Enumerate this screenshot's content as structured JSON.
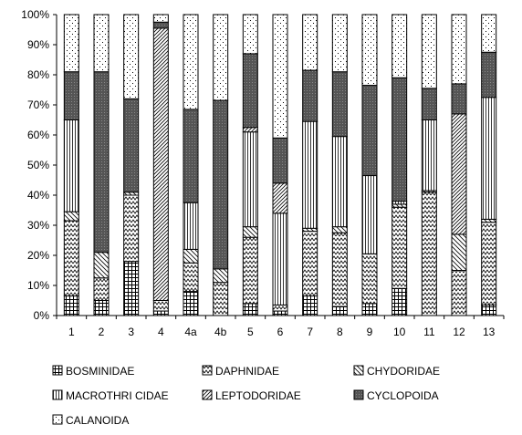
{
  "chart_data": {
    "type": "bar",
    "stacked": true,
    "percent": true,
    "categories": [
      "1",
      "2",
      "3",
      "4",
      "4a",
      "4b",
      "5",
      "6",
      "7",
      "8",
      "9",
      "10",
      "11",
      "12",
      "13"
    ],
    "yticks": [
      "0%",
      "10%",
      "20%",
      "30%",
      "40%",
      "50%",
      "60%",
      "70%",
      "80%",
      "90%",
      "100%"
    ],
    "ylim": [
      0,
      100
    ],
    "legend_position": "bottom",
    "series": [
      {
        "name": "BOSMINIDAE",
        "pattern": "grid",
        "values": [
          6.5,
          5,
          18,
          1.5,
          8,
          0,
          4,
          1.5,
          6.5,
          3,
          4,
          9,
          0,
          0,
          3.5
        ]
      },
      {
        "name": "DAPHNIDAE",
        "pattern": "zigzag",
        "values": [
          25,
          7.5,
          22,
          3.5,
          9.5,
          11,
          22,
          2,
          21.5,
          24.5,
          16.5,
          27,
          41,
          15,
          27.5
        ]
      },
      {
        "name": "CHYDORIDAE",
        "pattern": "diag-left",
        "values": [
          3,
          8.5,
          1,
          0,
          4.5,
          4.5,
          3.5,
          0,
          1,
          2,
          0,
          1,
          0.5,
          12,
          1
        ]
      },
      {
        "name": "MACROTHRI CIDAE",
        "pattern": "vertical",
        "values": [
          30.5,
          0,
          0,
          0,
          15.5,
          0,
          31.5,
          30.5,
          35.5,
          30,
          26,
          1,
          23.5,
          0,
          40.5
        ]
      },
      {
        "name": "LEPTODORIDAE",
        "pattern": "diag-right",
        "values": [
          0,
          0,
          0,
          90.5,
          0,
          0,
          1.5,
          10,
          0,
          0,
          0,
          0,
          0,
          40,
          0
        ]
      },
      {
        "name": "CYCLOPOIDA",
        "pattern": "dark",
        "values": [
          16,
          60,
          31,
          2,
          31,
          56,
          24.5,
          15,
          17,
          21.5,
          30,
          41,
          10.5,
          10,
          15
        ]
      },
      {
        "name": "CALANOIDA",
        "pattern": "dots",
        "values": [
          19,
          19,
          28,
          2.5,
          31.5,
          28.5,
          13,
          41,
          18.5,
          19,
          23.5,
          21,
          24.5,
          23,
          12.5
        ]
      }
    ]
  }
}
